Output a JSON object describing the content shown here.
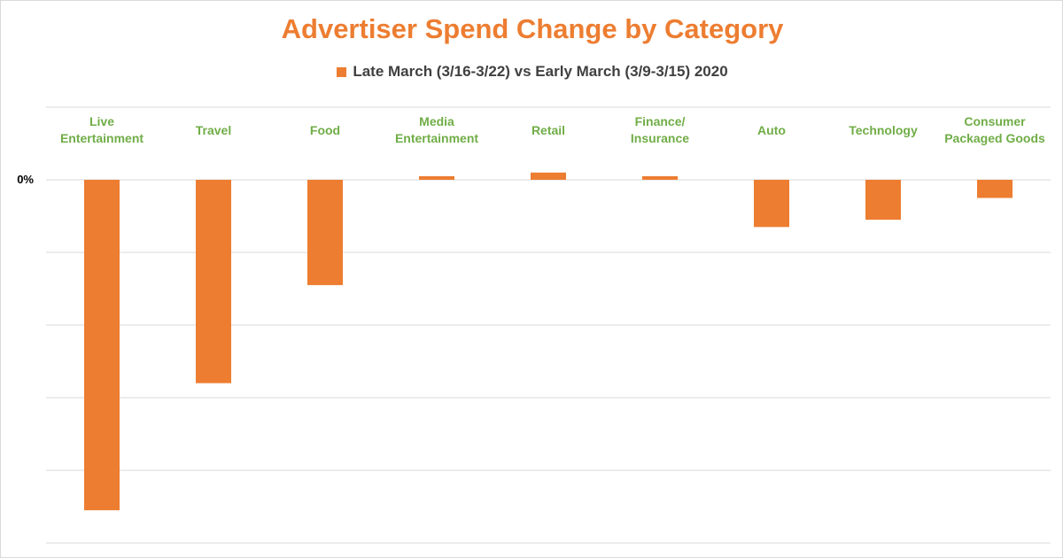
{
  "chart_data": {
    "type": "bar",
    "title": "Advertiser Spend Change by Category",
    "xlabel": "",
    "ylabel": "",
    "categories": [
      [
        "Live",
        "Entertainment"
      ],
      [
        "Travel"
      ],
      [
        "Food"
      ],
      [
        "Media",
        "Entertainment"
      ],
      [
        "Retail"
      ],
      [
        "Finance/",
        "Insurance"
      ],
      [
        "Auto"
      ],
      [
        "Technology"
      ],
      [
        "Consumer",
        "Packaged Goods"
      ]
    ],
    "series": [
      {
        "name": "Late March (3/16-3/22) vs Early March (3/9-3/15) 2020",
        "values": [
          -91,
          -56,
          -29,
          1,
          2,
          1,
          -13,
          -11,
          -5
        ]
      }
    ],
    "y_tick_labels": [
      "0%"
    ],
    "ylim": [
      -100,
      20
    ],
    "grid": true,
    "legend_position": "top",
    "colors": {
      "bar": "#ed7d31",
      "title": "#ed7d31",
      "category_label": "#70ad47",
      "gridline": "#d9d9d9"
    }
  }
}
